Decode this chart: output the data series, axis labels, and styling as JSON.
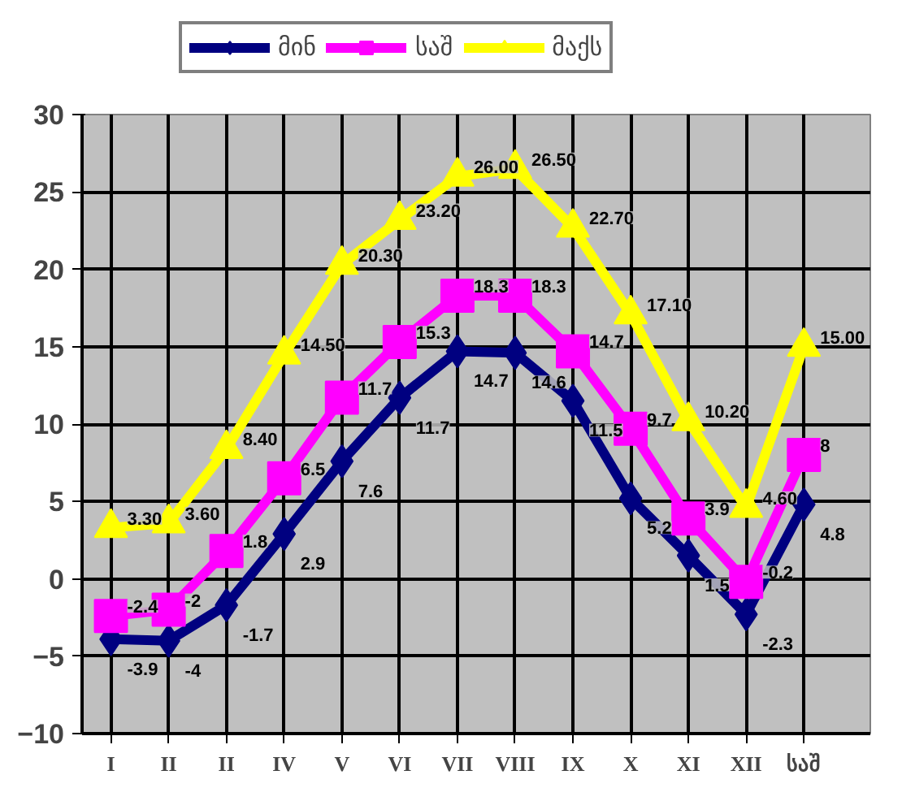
{
  "chart_data": {
    "type": "line",
    "categories": [
      "I",
      "II",
      "II",
      "IV",
      "V",
      "VI",
      "VII",
      "VIII",
      "IX",
      "X",
      "XI",
      "XII",
      "საშ"
    ],
    "series": [
      {
        "name": "მინ",
        "color": "#000080",
        "marker": "diamond",
        "values": [
          -3.9,
          -4,
          -1.7,
          2.9,
          7.6,
          11.7,
          14.7,
          14.6,
          11.5,
          5.2,
          1.5,
          -2.3,
          4.8
        ],
        "value_labels": [
          "-3.9",
          "-4",
          "-1.7",
          "2.9",
          "7.6",
          "11.7",
          "14.7",
          "14.6",
          "11.5",
          "5.2",
          "1.5",
          "-2.3",
          "4.8"
        ]
      },
      {
        "name": "საშ",
        "color": "#ff00ff",
        "marker": "square",
        "values": [
          -2.4,
          -2,
          1.8,
          6.5,
          11.7,
          15.3,
          18.3,
          18.3,
          14.7,
          9.7,
          3.9,
          -0.2,
          8
        ],
        "value_labels": [
          "-2.4",
          "-2",
          "1.8",
          "6.5",
          "11.7",
          "15.3",
          "18.3",
          "18.3",
          "14.7",
          "9.7",
          "3.9",
          "-0.2",
          "8"
        ]
      },
      {
        "name": "მაქს",
        "color": "#ffff00",
        "marker": "triangle",
        "values": [
          3.3,
          3.6,
          8.4,
          14.5,
          20.3,
          23.2,
          26.0,
          26.5,
          22.7,
          17.1,
          10.2,
          4.6,
          15.0
        ],
        "value_labels": [
          "3.30",
          "3.60",
          "8.40",
          "14.50",
          "20.30",
          "23.20",
          "26.00",
          "26.50",
          "22.70",
          "17.10",
          "10.20",
          "4.60",
          "15.00"
        ]
      }
    ],
    "ylim": [
      -10,
      30
    ],
    "yticks": [
      -10,
      -5,
      0,
      5,
      10,
      15,
      20,
      25,
      30
    ],
    "grid": true,
    "legend": "top"
  }
}
